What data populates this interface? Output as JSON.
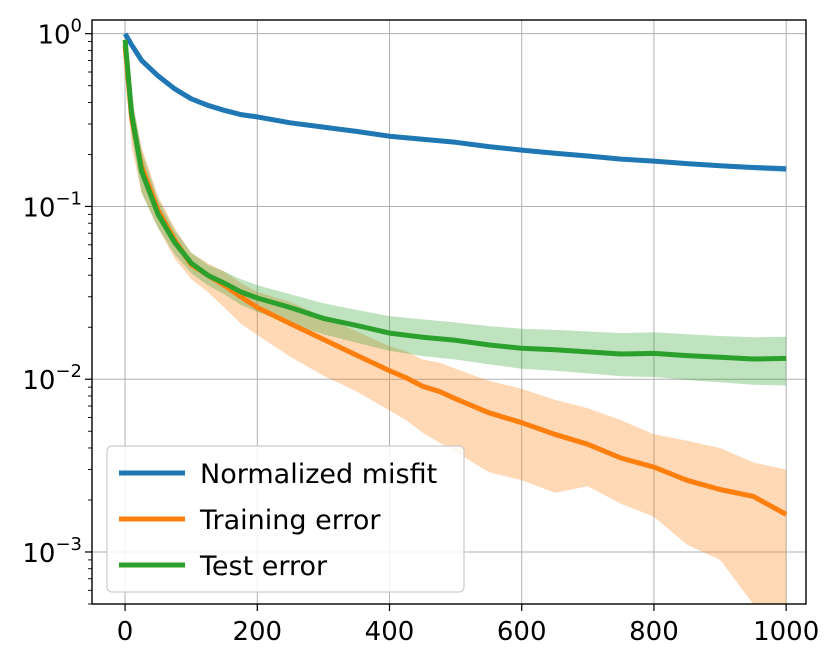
{
  "chart_data": {
    "type": "line",
    "title": "",
    "xlabel": "",
    "ylabel": "",
    "yscale": "log",
    "xlim": [
      -50,
      1030
    ],
    "ylim": [
      0.0005,
      1.2
    ],
    "grid": true,
    "legend_position": "lower-left",
    "xticks": [
      0,
      200,
      400,
      600,
      800,
      1000
    ],
    "xtick_labels": [
      "0",
      "200",
      "400",
      "600",
      "800",
      "1000"
    ],
    "yticks": [
      {
        "value": 1,
        "base": "10",
        "exp": "0"
      },
      {
        "value": 0.1,
        "base": "10",
        "exp": "−1"
      },
      {
        "value": 0.01,
        "base": "10",
        "exp": "−2"
      },
      {
        "value": 0.001,
        "base": "10",
        "exp": "−3"
      }
    ],
    "series": [
      {
        "name": "Normalized misfit",
        "color": "#1f77b4",
        "x": [
          0,
          10,
          25,
          50,
          75,
          100,
          125,
          150,
          175,
          200,
          250,
          300,
          350,
          400,
          450,
          500,
          550,
          600,
          650,
          700,
          750,
          800,
          850,
          900,
          950,
          1000
        ],
        "y": [
          1.0,
          0.86,
          0.7,
          0.57,
          0.48,
          0.42,
          0.385,
          0.36,
          0.34,
          0.33,
          0.305,
          0.288,
          0.272,
          0.255,
          0.245,
          0.235,
          0.222,
          0.212,
          0.203,
          0.196,
          0.188,
          0.183,
          0.177,
          0.172,
          0.168,
          0.165
        ],
        "band_lower": [
          0.98,
          0.84,
          0.69,
          0.56,
          0.47,
          0.415,
          0.38,
          0.355,
          0.335,
          0.325,
          0.3,
          0.283,
          0.267,
          0.25,
          0.24,
          0.23,
          0.218,
          0.208,
          0.199,
          0.192,
          0.184,
          0.179,
          0.173,
          0.167,
          0.162,
          0.158
        ],
        "band_upper": [
          1.02,
          0.88,
          0.71,
          0.58,
          0.49,
          0.425,
          0.39,
          0.365,
          0.345,
          0.335,
          0.31,
          0.293,
          0.277,
          0.26,
          0.25,
          0.24,
          0.226,
          0.216,
          0.207,
          0.2,
          0.192,
          0.187,
          0.181,
          0.177,
          0.174,
          0.172
        ]
      },
      {
        "name": "Training error",
        "color": "#ff7f0e",
        "x": [
          0,
          10,
          25,
          50,
          75,
          100,
          125,
          150,
          175,
          200,
          250,
          300,
          350,
          400,
          425,
          450,
          475,
          500,
          550,
          600,
          650,
          700,
          750,
          800,
          850,
          900,
          950,
          1000
        ],
        "y": [
          0.85,
          0.32,
          0.17,
          0.095,
          0.064,
          0.046,
          0.04,
          0.035,
          0.03,
          0.026,
          0.021,
          0.017,
          0.0138,
          0.0112,
          0.0102,
          0.0091,
          0.0085,
          0.0077,
          0.0064,
          0.0056,
          0.0048,
          0.0042,
          0.0035,
          0.0031,
          0.0026,
          0.0023,
          0.0021,
          0.00165
        ],
        "band_lower": [
          0.7,
          0.22,
          0.12,
          0.075,
          0.05,
          0.038,
          0.032,
          0.026,
          0.021,
          0.018,
          0.0135,
          0.0105,
          0.0085,
          0.0066,
          0.0058,
          0.0049,
          0.0043,
          0.0038,
          0.0029,
          0.0026,
          0.0022,
          0.0024,
          0.0019,
          0.0016,
          0.0011,
          0.0009,
          0.0005,
          0.0005
        ],
        "band_upper": [
          1.0,
          0.42,
          0.22,
          0.115,
          0.075,
          0.054,
          0.047,
          0.042,
          0.036,
          0.032,
          0.028,
          0.023,
          0.019,
          0.0155,
          0.0145,
          0.013,
          0.0125,
          0.0115,
          0.0098,
          0.0088,
          0.0076,
          0.0068,
          0.0058,
          0.0048,
          0.0044,
          0.004,
          0.0033,
          0.003
        ]
      },
      {
        "name": "Test error",
        "color": "#2ca02c",
        "x": [
          0,
          10,
          25,
          50,
          75,
          100,
          125,
          150,
          175,
          200,
          250,
          300,
          350,
          400,
          450,
          500,
          550,
          600,
          650,
          700,
          750,
          800,
          850,
          900,
          950,
          1000
        ],
        "y": [
          0.92,
          0.34,
          0.16,
          0.09,
          0.062,
          0.047,
          0.04,
          0.036,
          0.032,
          0.0295,
          0.026,
          0.0225,
          0.0205,
          0.0185,
          0.0175,
          0.0168,
          0.0158,
          0.0151,
          0.0148,
          0.0144,
          0.014,
          0.0141,
          0.0137,
          0.0134,
          0.0131,
          0.0132
        ],
        "band_lower": [
          0.8,
          0.26,
          0.12,
          0.075,
          0.053,
          0.041,
          0.035,
          0.031,
          0.027,
          0.0245,
          0.021,
          0.0182,
          0.0163,
          0.0146,
          0.0136,
          0.013,
          0.0122,
          0.0115,
          0.0112,
          0.0108,
          0.0104,
          0.0103,
          0.0099,
          0.0096,
          0.0093,
          0.0092
        ],
        "band_upper": [
          1.02,
          0.44,
          0.21,
          0.11,
          0.073,
          0.054,
          0.046,
          0.042,
          0.038,
          0.035,
          0.031,
          0.0275,
          0.0252,
          0.0232,
          0.0222,
          0.0213,
          0.0203,
          0.0196,
          0.0193,
          0.0189,
          0.0185,
          0.0187,
          0.0182,
          0.0178,
          0.0175,
          0.0176
        ]
      }
    ]
  }
}
